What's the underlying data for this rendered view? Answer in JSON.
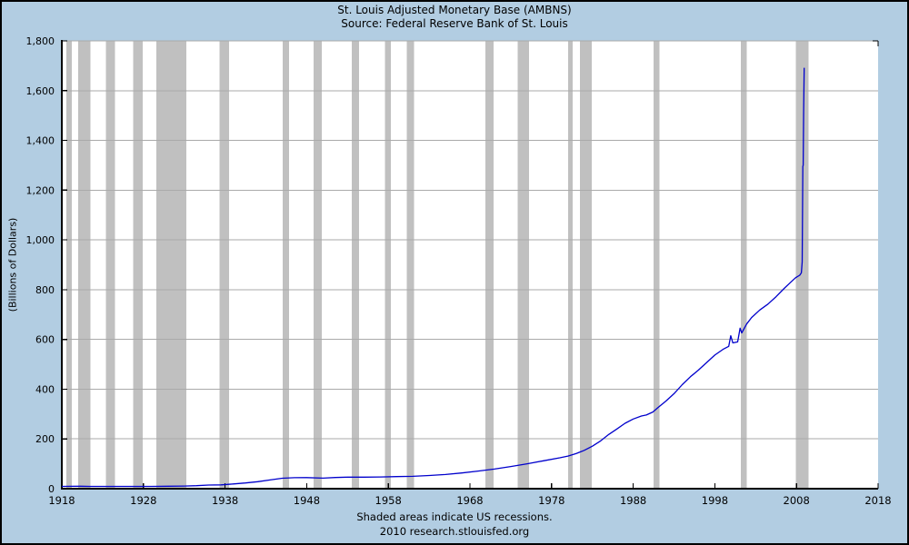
{
  "header": {
    "title": "St. Louis Adjusted Monetary Base (AMBNS)",
    "subtitle": "Source: Federal Reserve Bank of St. Louis"
  },
  "footer": {
    "note": "Shaded areas indicate US recessions.",
    "credit": "2010 research.stlouisfed.org"
  },
  "chart_data": {
    "type": "line",
    "title": "St. Louis Adjusted Monetary Base (AMBNS)",
    "subtitle": "Source: Federal Reserve Bank of St. Louis",
    "xlabel": "",
    "ylabel": "(Billions of Dollars)",
    "xlim": [
      1918,
      2018
    ],
    "ylim": [
      0,
      1800
    ],
    "x_ticks": [
      1918,
      1928,
      1938,
      1948,
      1958,
      1968,
      1978,
      1988,
      1998,
      2008,
      2018
    ],
    "y_ticks": [
      0,
      200,
      400,
      600,
      800,
      1000,
      1200,
      1400,
      1600,
      1800
    ],
    "y_tick_labels": [
      "0",
      "200",
      "400",
      "600",
      "800",
      "1,000",
      "1,200",
      "1,400",
      "1,600",
      "1,800"
    ],
    "grid": "horizontal",
    "legend_position": "none",
    "annotations": [
      "Shaded areas indicate US recessions."
    ],
    "recessions": [
      [
        1918.58,
        1919.25
      ],
      [
        1920.0,
        1921.5
      ],
      [
        1923.42,
        1924.5
      ],
      [
        1926.75,
        1927.92
      ],
      [
        1929.58,
        1933.25
      ],
      [
        1937.33,
        1938.5
      ],
      [
        1945.08,
        1945.83
      ],
      [
        1948.83,
        1949.83
      ],
      [
        1953.5,
        1954.42
      ],
      [
        1957.58,
        1958.33
      ],
      [
        1960.25,
        1961.17
      ],
      [
        1969.92,
        1970.92
      ],
      [
        1973.83,
        1975.25
      ],
      [
        1980.0,
        1980.58
      ],
      [
        1981.5,
        1982.92
      ],
      [
        1990.5,
        1991.25
      ],
      [
        2001.17,
        2001.92
      ],
      [
        2007.92,
        2009.5
      ]
    ],
    "series": [
      {
        "name": "AMBNS",
        "color": "#0000cc",
        "points": [
          [
            1918.0,
            9
          ],
          [
            1919.0,
            9.5
          ],
          [
            1920.3,
            10
          ],
          [
            1921.5,
            9
          ],
          [
            1923.0,
            9.2
          ],
          [
            1926.0,
            9.3
          ],
          [
            1929.0,
            9.2
          ],
          [
            1931.0,
            9.8
          ],
          [
            1933.0,
            10.5
          ],
          [
            1934.5,
            12
          ],
          [
            1936.0,
            14.5
          ],
          [
            1937.5,
            15.5
          ],
          [
            1939.0,
            19
          ],
          [
            1940.5,
            23
          ],
          [
            1942.0,
            28
          ],
          [
            1943.5,
            35
          ],
          [
            1945.0,
            42
          ],
          [
            1946.5,
            44
          ],
          [
            1948.0,
            44.5
          ],
          [
            1950.0,
            42.5
          ],
          [
            1951.5,
            45
          ],
          [
            1953.0,
            46.5
          ],
          [
            1955.0,
            46.5
          ],
          [
            1957.0,
            47
          ],
          [
            1959.0,
            48.5
          ],
          [
            1961.0,
            49.5
          ],
          [
            1963.0,
            53
          ],
          [
            1965.0,
            57
          ],
          [
            1967.0,
            63
          ],
          [
            1969.0,
            71
          ],
          [
            1971.0,
            79
          ],
          [
            1973.0,
            89
          ],
          [
            1975.0,
            100
          ],
          [
            1977.0,
            112
          ],
          [
            1979.0,
            124
          ],
          [
            1980.0,
            131
          ],
          [
            1981.0,
            141
          ],
          [
            1982.0,
            154
          ],
          [
            1983.0,
            171
          ],
          [
            1984.0,
            192
          ],
          [
            1985.0,
            218
          ],
          [
            1986.0,
            240
          ],
          [
            1987.0,
            263
          ],
          [
            1988.0,
            280
          ],
          [
            1989.0,
            292
          ],
          [
            1989.6,
            296
          ],
          [
            1990.4,
            308
          ],
          [
            1991.0,
            325
          ],
          [
            1992.0,
            352
          ],
          [
            1993.0,
            382
          ],
          [
            1994.0,
            418
          ],
          [
            1995.0,
            450
          ],
          [
            1996.0,
            477
          ],
          [
            1997.0,
            507
          ],
          [
            1998.0,
            537
          ],
          [
            1999.0,
            560
          ],
          [
            1999.7,
            572
          ],
          [
            1999.95,
            615
          ],
          [
            2000.2,
            586
          ],
          [
            2000.8,
            590
          ],
          [
            2001.1,
            645
          ],
          [
            2001.3,
            626
          ],
          [
            2001.9,
            662
          ],
          [
            2002.5,
            688
          ],
          [
            2003.5,
            718
          ],
          [
            2004.5,
            742
          ],
          [
            2005.5,
            772
          ],
          [
            2006.5,
            805
          ],
          [
            2007.3,
            830
          ],
          [
            2007.9,
            848
          ],
          [
            2008.4,
            858
          ],
          [
            2008.6,
            868
          ],
          [
            2008.7,
            912
          ],
          [
            2008.78,
            1295
          ],
          [
            2008.82,
            1300
          ],
          [
            2008.88,
            1520
          ],
          [
            2008.95,
            1692
          ]
        ]
      }
    ],
    "colors": {
      "background": "#b2cde2",
      "plot_background": "#ffffff",
      "recession_band": "#c0c0c0",
      "gridline": "#aaaaaa",
      "axis": "#000000",
      "line": "#0000cc",
      "text": "#000000"
    }
  }
}
